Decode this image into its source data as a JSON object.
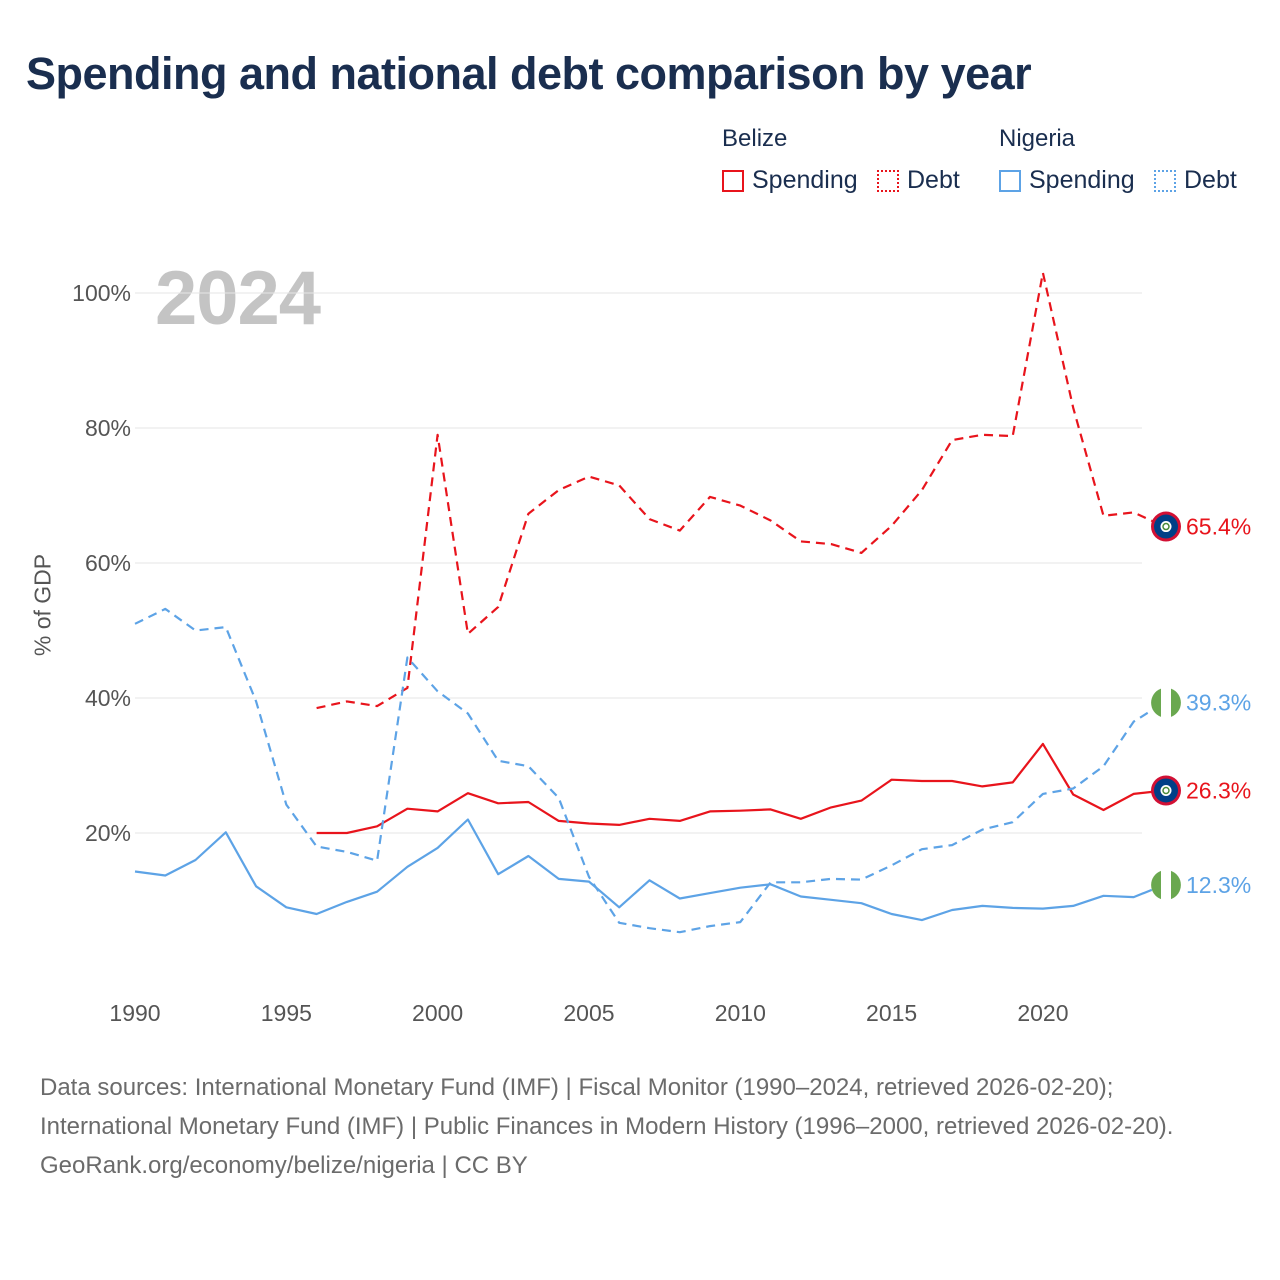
{
  "title": "Spending and national debt comparison by year",
  "legend": {
    "groups": [
      {
        "country": "Belize",
        "items": [
          {
            "label": "Spending"
          },
          {
            "label": "Debt"
          }
        ]
      },
      {
        "country": "Nigeria",
        "items": [
          {
            "label": "Spending"
          },
          {
            "label": "Debt"
          }
        ]
      }
    ]
  },
  "year_watermark": "2024",
  "colors": {
    "belize": "#e8141c",
    "nigeria": "#5da3e6",
    "grid": "#e6e6e6",
    "axis_text": "#555555"
  },
  "chart_data": {
    "type": "line",
    "title": "Spending and national debt comparison by year",
    "xlabel": "",
    "ylabel": "% of GDP",
    "xlim": [
      1990,
      2024
    ],
    "ylim": [
      0,
      105
    ],
    "x_ticks": [
      1990,
      1995,
      2000,
      2005,
      2010,
      2015,
      2020
    ],
    "y_ticks": [
      20,
      40,
      60,
      80,
      100
    ],
    "y_tick_labels": [
      "20%",
      "40%",
      "60%",
      "80%",
      "100%"
    ],
    "grid": true,
    "series": [
      {
        "name": "Belize Spending",
        "country": "Belize",
        "metric": "Spending",
        "dashed": false,
        "x": [
          1996,
          1997,
          1998,
          1999,
          2000,
          2001,
          2002,
          2003,
          2004,
          2005,
          2006,
          2007,
          2008,
          2009,
          2010,
          2011,
          2012,
          2013,
          2014,
          2015,
          2016,
          2017,
          2018,
          2019,
          2020,
          2021,
          2022,
          2023,
          2024
        ],
        "y": [
          20.0,
          20.0,
          21.0,
          23.6,
          23.2,
          25.9,
          24.4,
          24.6,
          21.8,
          21.4,
          21.2,
          22.1,
          21.8,
          23.2,
          23.3,
          23.5,
          22.1,
          23.8,
          24.8,
          27.9,
          27.7,
          27.7,
          26.9,
          27.5,
          33.2,
          25.7,
          23.4,
          25.8,
          26.3
        ],
        "end_label": "26.3%"
      },
      {
        "name": "Belize Debt",
        "country": "Belize",
        "metric": "Debt",
        "dashed": true,
        "x": [
          1996,
          1997,
          1998,
          1999,
          2000,
          2001,
          2002,
          2003,
          2004,
          2005,
          2006,
          2007,
          2008,
          2009,
          2010,
          2011,
          2012,
          2013,
          2014,
          2015,
          2016,
          2017,
          2018,
          2019,
          2020,
          2021,
          2022,
          2023,
          2024
        ],
        "y": [
          38.5,
          39.5,
          38.8,
          41.5,
          79.0,
          49.5,
          53.5,
          67.3,
          70.8,
          72.8,
          71.5,
          66.5,
          64.8,
          69.8,
          68.5,
          66.3,
          63.2,
          62.8,
          61.5,
          65.5,
          70.8,
          78.2,
          79.0,
          78.8,
          103.0,
          83.0,
          67.0,
          67.5,
          65.4
        ],
        "end_label": "65.4%"
      },
      {
        "name": "Nigeria Spending",
        "country": "Nigeria",
        "metric": "Spending",
        "dashed": false,
        "x": [
          1990,
          1991,
          1992,
          1993,
          1994,
          1995,
          1996,
          1997,
          1998,
          1999,
          2000,
          2001,
          2002,
          2003,
          2004,
          2005,
          2006,
          2007,
          2008,
          2009,
          2010,
          2011,
          2012,
          2013,
          2014,
          2015,
          2016,
          2017,
          2018,
          2019,
          2020,
          2021,
          2022,
          2023,
          2024
        ],
        "y": [
          14.3,
          13.7,
          16.0,
          20.1,
          12.1,
          9.0,
          8.0,
          9.8,
          11.3,
          15.0,
          17.8,
          22.0,
          13.9,
          16.6,
          13.2,
          12.8,
          9.0,
          13.0,
          10.3,
          11.1,
          11.9,
          12.4,
          10.6,
          10.1,
          9.6,
          8.0,
          7.1,
          8.6,
          9.2,
          8.9,
          8.8,
          9.2,
          10.7,
          10.5,
          12.3
        ],
        "end_label": "12.3%"
      },
      {
        "name": "Nigeria Debt",
        "country": "Nigeria",
        "metric": "Debt",
        "dashed": true,
        "x": [
          1990,
          1991,
          1992,
          1993,
          1994,
          1995,
          1996,
          1997,
          1998,
          1999,
          2000,
          2001,
          2002,
          2003,
          2004,
          2005,
          2006,
          2007,
          2008,
          2009,
          2010,
          2011,
          2012,
          2013,
          2014,
          2015,
          2016,
          2017,
          2018,
          2019,
          2020,
          2021,
          2022,
          2023,
          2024
        ],
        "y": [
          51.0,
          53.2,
          50.0,
          50.5,
          39.5,
          24.2,
          18.0,
          17.2,
          15.9,
          46.0,
          41.0,
          37.7,
          30.7,
          29.9,
          25.2,
          13.5,
          6.7,
          5.9,
          5.3,
          6.2,
          6.8,
          12.7,
          12.7,
          13.2,
          13.1,
          15.2,
          17.6,
          18.2,
          20.5,
          21.6,
          25.8,
          26.6,
          29.9,
          36.5,
          39.3
        ],
        "end_label": "39.3%"
      }
    ]
  },
  "footer": {
    "sources": "Data sources: International Monetary Fund (IMF) | Fiscal Monitor (1990–2024, retrieved 2026-02-20); International Monetary Fund (IMF) | Public Finances in Modern History (1996–2000, retrieved 2026-02-20).",
    "credit": "GeoRank.org/economy/belize/nigeria | CC BY"
  }
}
